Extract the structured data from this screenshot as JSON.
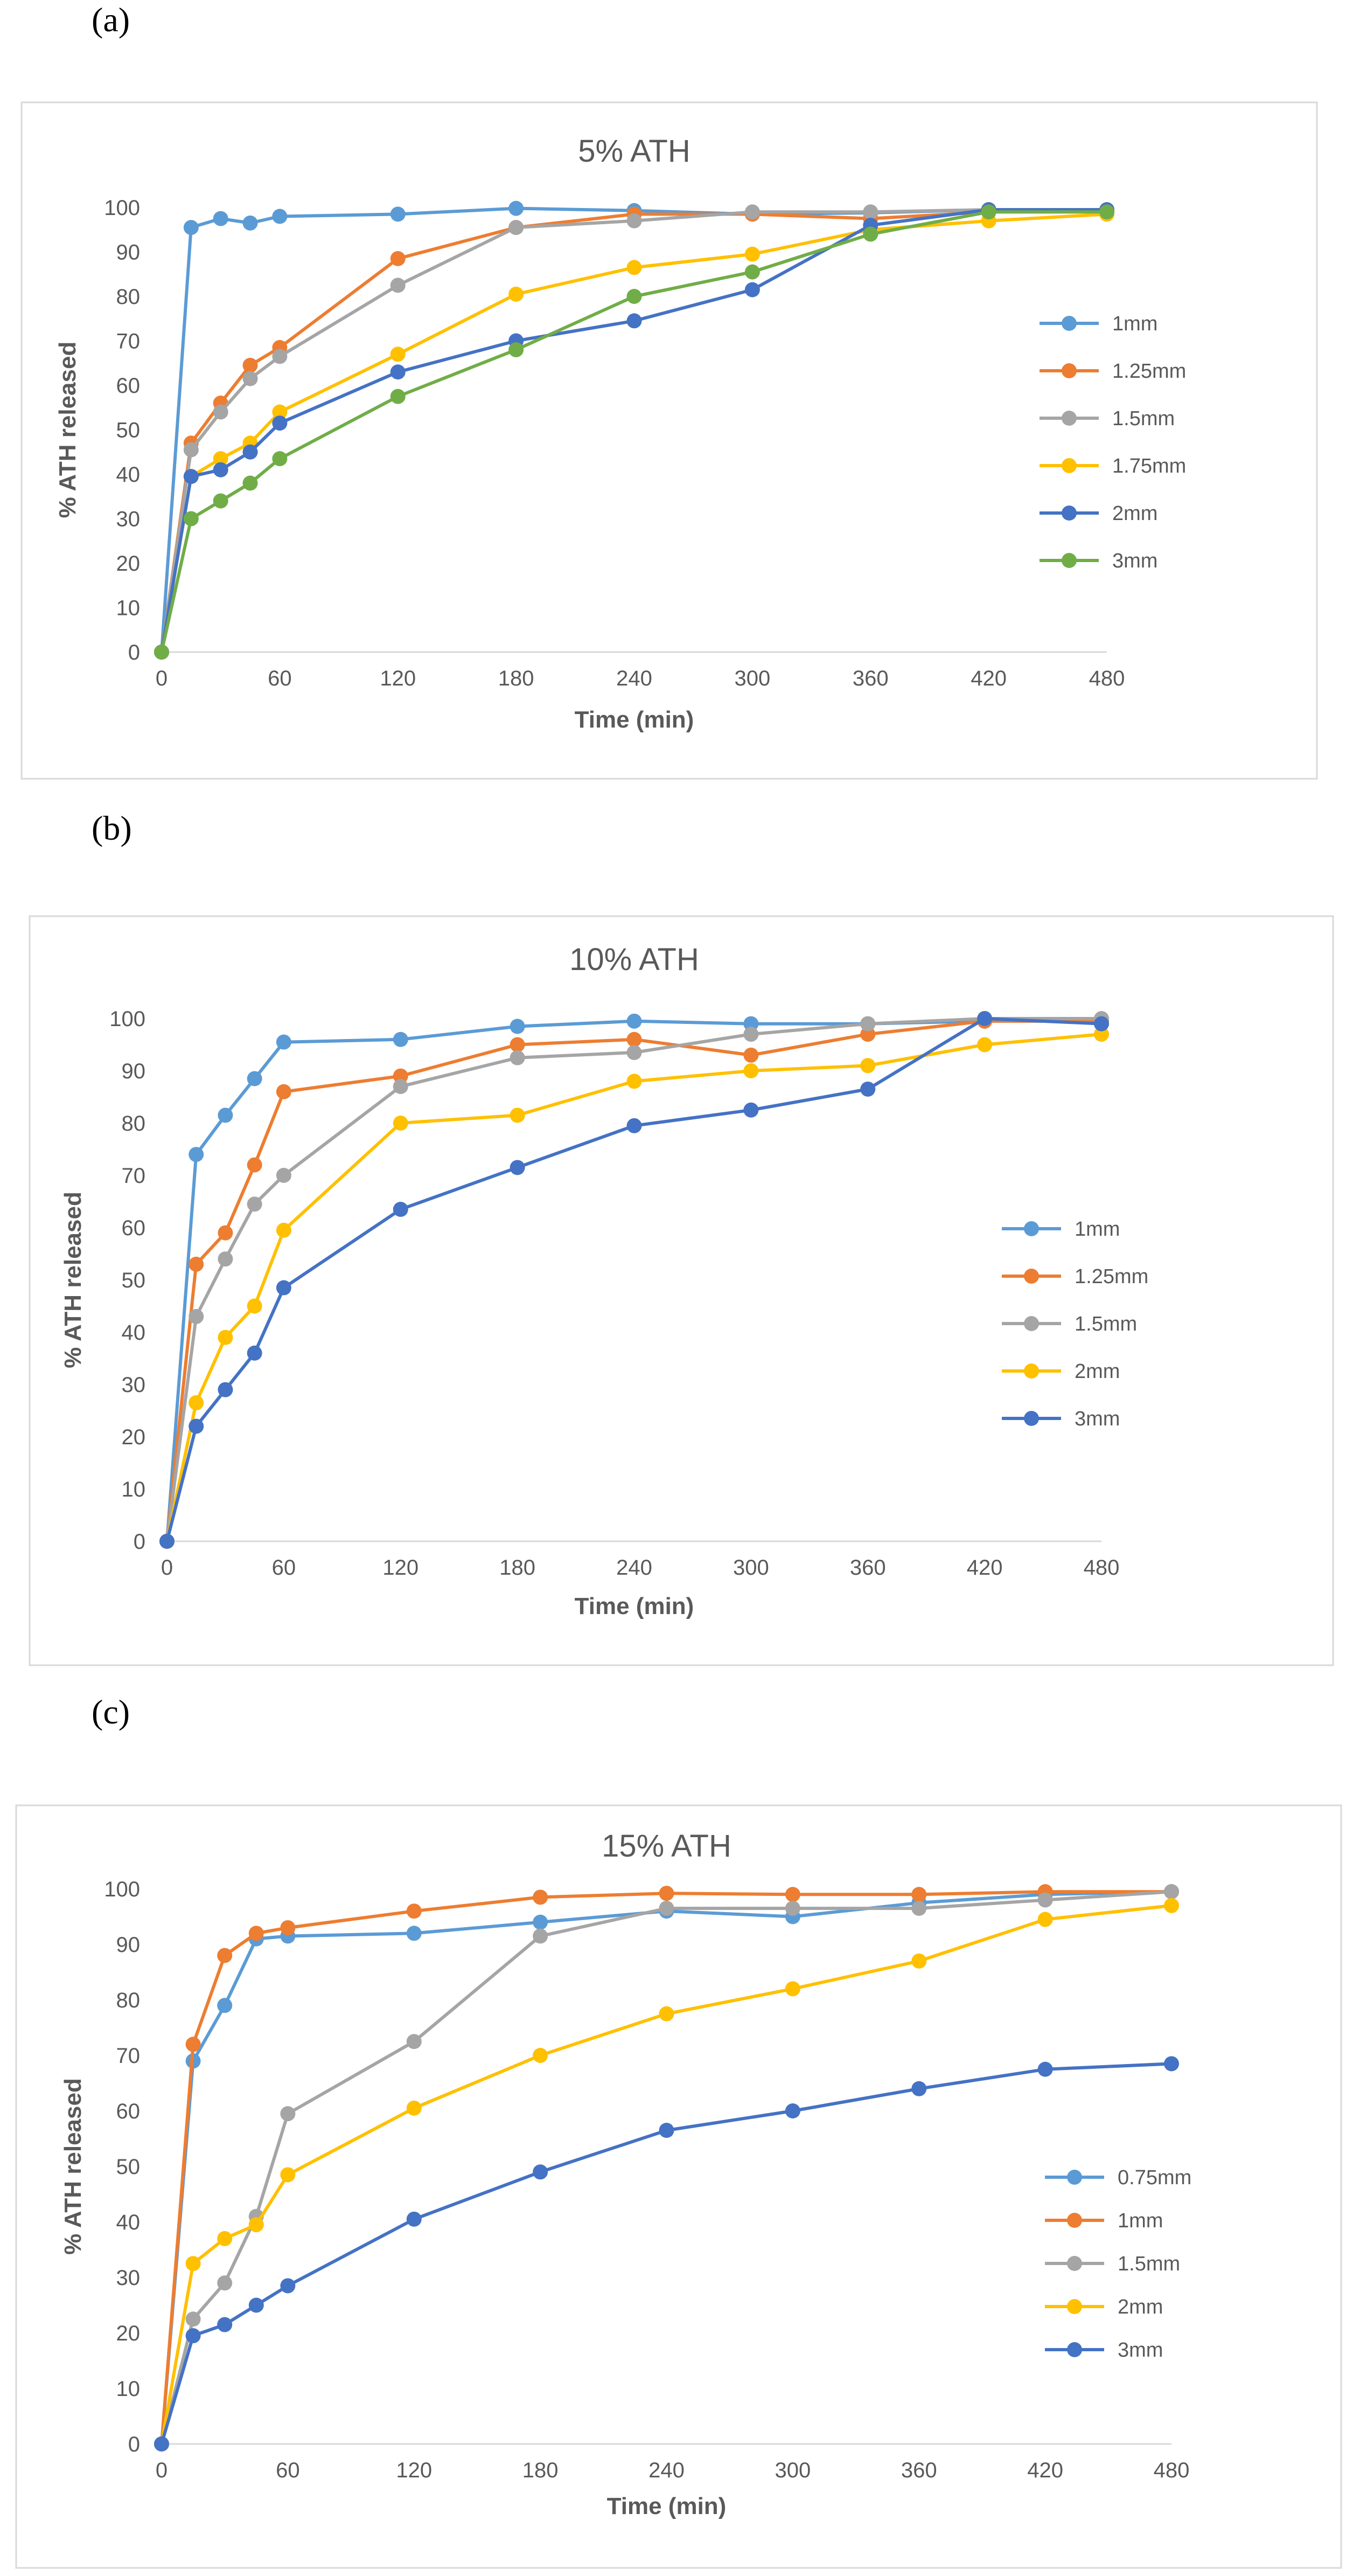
{
  "panel_labels": [
    "(a)",
    "(b)",
    "(c)"
  ],
  "chart_data": [
    {
      "type": "line",
      "title": "5% ATH",
      "xlabel": "Time (min)",
      "ylabel": "% ATH released",
      "xticks": [
        0,
        60,
        120,
        180,
        240,
        300,
        360,
        420,
        480
      ],
      "yticks": [
        0,
        10,
        20,
        30,
        40,
        50,
        60,
        70,
        80,
        90,
        100
      ],
      "xlim": [
        0,
        480
      ],
      "ylim": [
        0,
        100
      ],
      "grid": false,
      "legend": "right",
      "x": [
        0,
        15,
        30,
        45,
        60,
        120,
        180,
        240,
        300,
        360,
        420,
        480
      ],
      "series": [
        {
          "name": "1mm",
          "color": "#5B9BD5",
          "values": [
            0,
            95.5,
            97.5,
            96.5,
            98,
            98.5,
            99.8,
            99.3,
            98.5,
            98.8,
            99.5,
            99.5
          ]
        },
        {
          "name": "1.25mm",
          "color": "#ED7D31",
          "values": [
            0,
            47,
            56,
            64.5,
            68.5,
            88.5,
            95.5,
            98.5,
            98.5,
            97.5,
            99,
            99
          ]
        },
        {
          "name": "1.5mm",
          "color": "#A5A5A5",
          "values": [
            0,
            45.5,
            54,
            61.5,
            66.5,
            82.5,
            95.5,
            97,
            99,
            99,
            99.5,
            99.5
          ]
        },
        {
          "name": "1.75mm",
          "color": "#FFC000",
          "values": [
            0,
            39.5,
            43.5,
            47,
            54,
            67,
            80.5,
            86.5,
            89.5,
            95,
            97,
            98.5
          ]
        },
        {
          "name": "2mm",
          "color": "#4472C4",
          "values": [
            0,
            39.5,
            41,
            45,
            51.5,
            63,
            70,
            74.5,
            81.5,
            96,
            99.5,
            99.5
          ]
        },
        {
          "name": "3mm",
          "color": "#70AD47",
          "values": [
            0,
            30,
            34,
            38,
            43.5,
            57.5,
            68,
            80,
            85.5,
            94,
            99,
            99
          ]
        }
      ]
    },
    {
      "type": "line",
      "title": "10% ATH",
      "xlabel": "Time (min)",
      "ylabel": "% ATH released",
      "xticks": [
        0,
        60,
        120,
        180,
        240,
        300,
        360,
        420,
        480
      ],
      "yticks": [
        0,
        10,
        20,
        30,
        40,
        50,
        60,
        70,
        80,
        90,
        100
      ],
      "xlim": [
        0,
        480
      ],
      "ylim": [
        0,
        100
      ],
      "grid": false,
      "legend": "right",
      "x": [
        0,
        15,
        30,
        45,
        60,
        120,
        180,
        240,
        300,
        360,
        420,
        480
      ],
      "series": [
        {
          "name": "1mm",
          "color": "#5B9BD5",
          "values": [
            0,
            74,
            81.5,
            88.5,
            95.5,
            96,
            98.5,
            99.5,
            99,
            99,
            99.5,
            99.5
          ]
        },
        {
          "name": "1.25mm",
          "color": "#ED7D31",
          "values": [
            0,
            53,
            59,
            72,
            86,
            89,
            95,
            96,
            93,
            97,
            99.5,
            99.5
          ]
        },
        {
          "name": "1.5mm",
          "color": "#A5A5A5",
          "values": [
            0,
            43,
            54,
            64.5,
            70,
            87,
            92.5,
            93.5,
            97,
            99,
            100,
            100
          ]
        },
        {
          "name": "2mm",
          "color": "#FFC000",
          "values": [
            0,
            26.5,
            39,
            45,
            59.5,
            80,
            81.5,
            88,
            90,
            91,
            95,
            97
          ]
        },
        {
          "name": "3mm",
          "color": "#4472C4",
          "values": [
            0,
            22,
            29,
            36,
            48.5,
            63.5,
            71.5,
            79.5,
            82.5,
            86.5,
            100,
            99
          ]
        }
      ]
    },
    {
      "type": "line",
      "title": "15% ATH",
      "xlabel": "Time (min)",
      "ylabel": "% ATH released",
      "xticks": [
        0,
        60,
        120,
        180,
        240,
        300,
        360,
        420,
        480
      ],
      "yticks": [
        0,
        10,
        20,
        30,
        40,
        50,
        60,
        70,
        80,
        90,
        100
      ],
      "xlim": [
        0,
        480
      ],
      "ylim": [
        0,
        100
      ],
      "grid": false,
      "legend": "right",
      "x": [
        0,
        15,
        30,
        45,
        60,
        120,
        180,
        240,
        300,
        360,
        420,
        480
      ],
      "series": [
        {
          "name": "0.75mm",
          "color": "#5B9BD5",
          "values": [
            0,
            69,
            79,
            91,
            91.5,
            92,
            94,
            96,
            95,
            97.5,
            99,
            99.5
          ]
        },
        {
          "name": "1mm",
          "color": "#ED7D31",
          "values": [
            0,
            72,
            88,
            92,
            93,
            96,
            98.5,
            99.2,
            99,
            99,
            99.5,
            99.5
          ]
        },
        {
          "name": "1.5mm",
          "color": "#A5A5A5",
          "values": [
            0,
            22.5,
            29,
            41,
            59.5,
            72.5,
            91.5,
            96.5,
            96.5,
            96.5,
            98,
            99.5
          ]
        },
        {
          "name": "2mm",
          "color": "#FFC000",
          "values": [
            0,
            32.5,
            37,
            39.5,
            48.5,
            60.5,
            70,
            77.5,
            82,
            87,
            94.5,
            97
          ]
        },
        {
          "name": "3mm",
          "color": "#4472C4",
          "values": [
            0,
            19.5,
            21.5,
            25,
            28.5,
            40.5,
            49,
            56.5,
            60,
            64,
            67.5,
            68.5
          ]
        }
      ]
    }
  ]
}
